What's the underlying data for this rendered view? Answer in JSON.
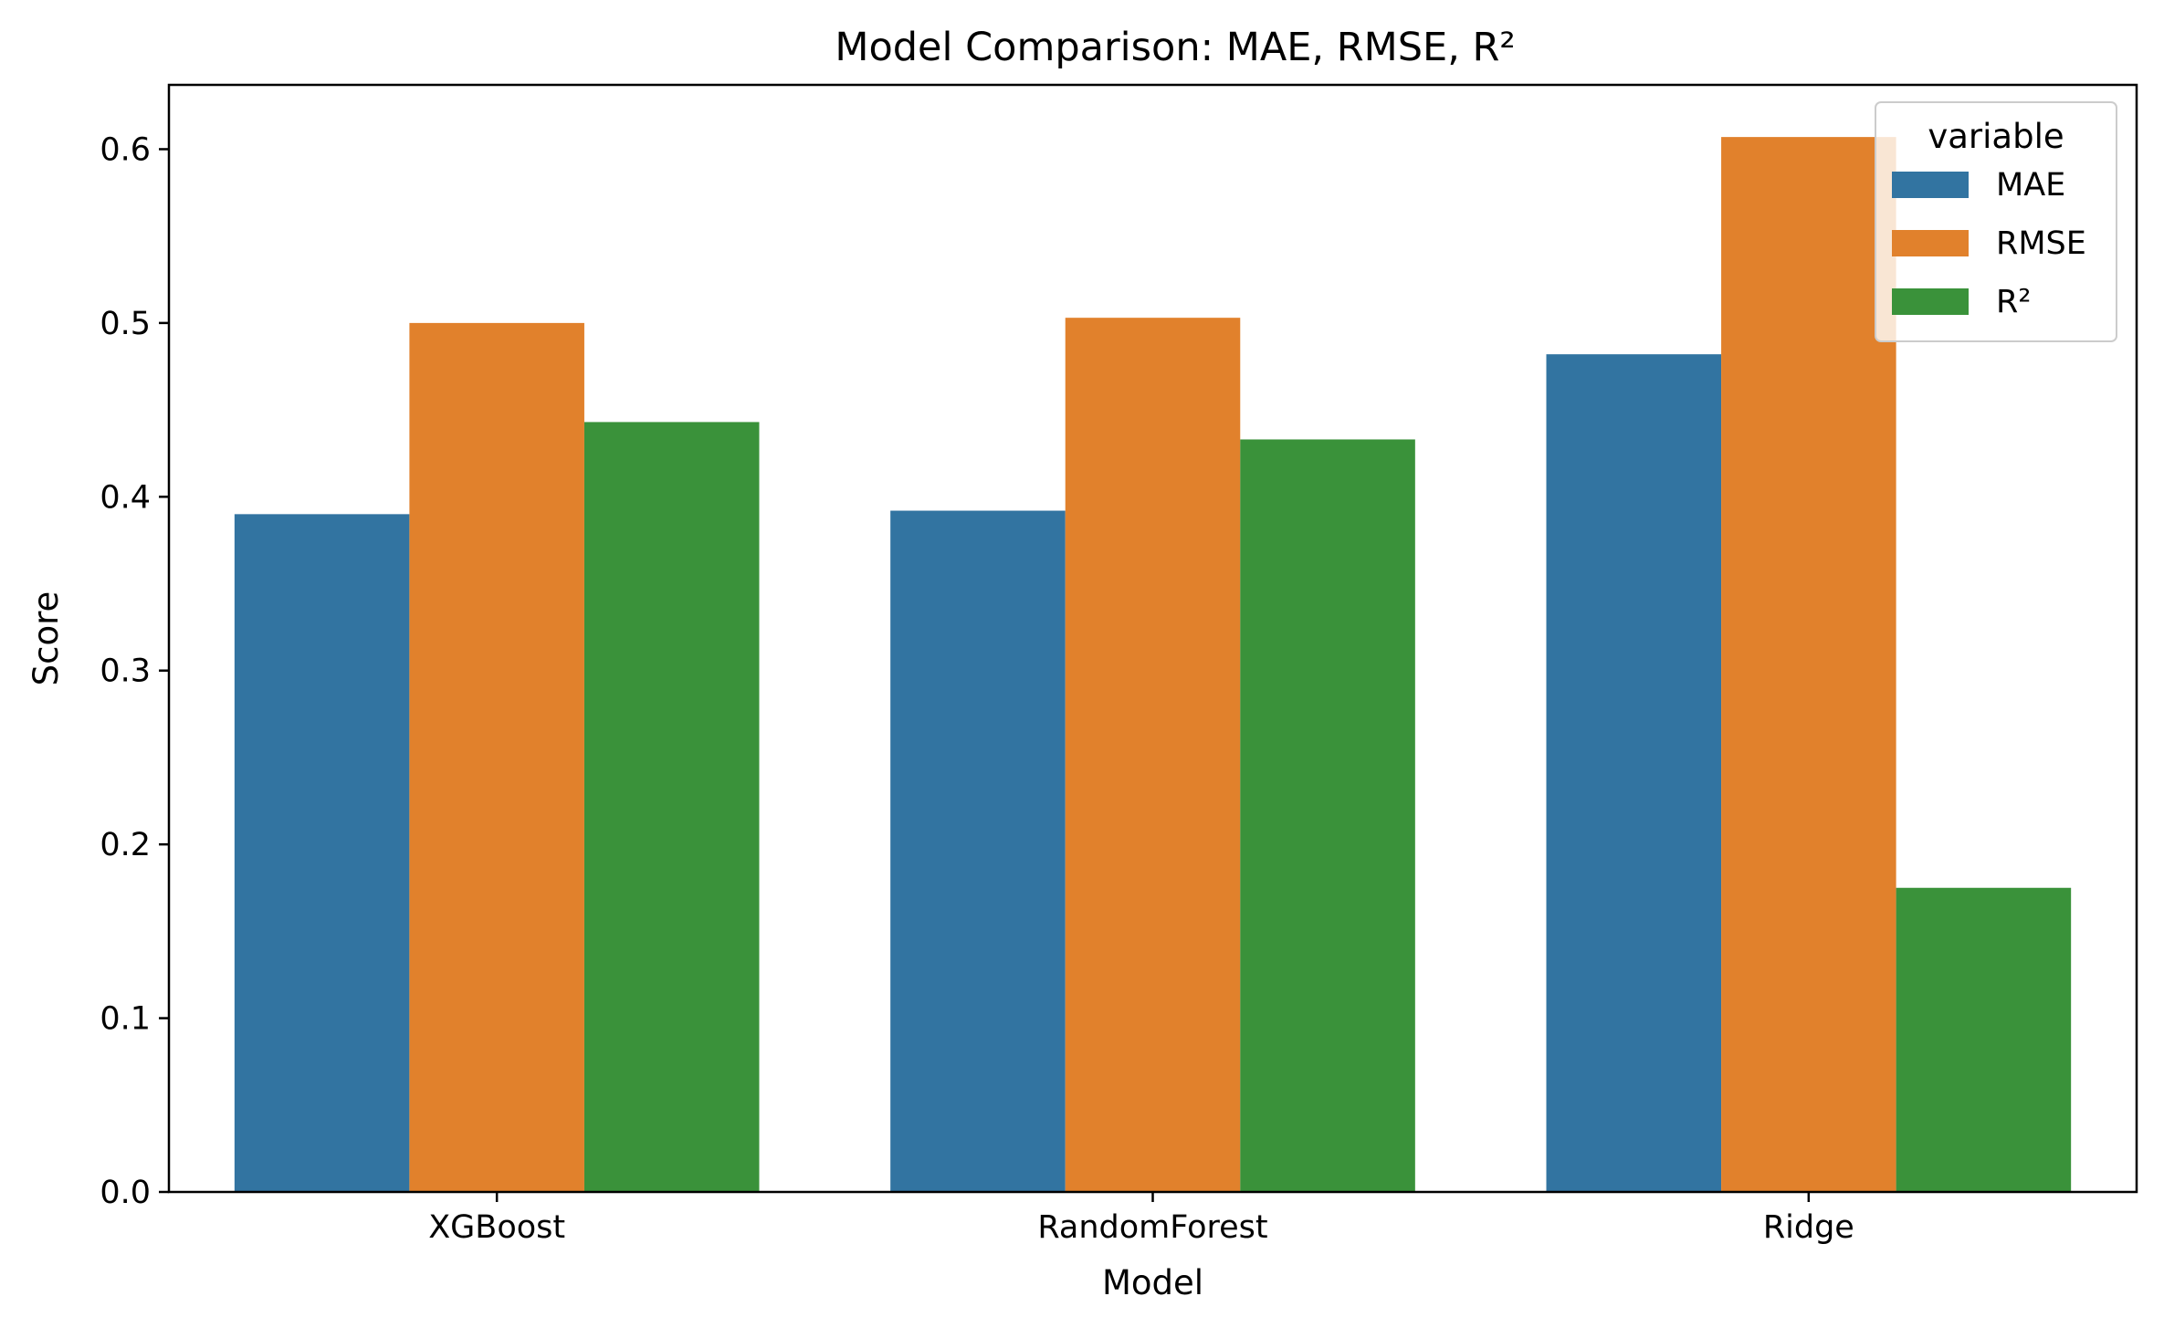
{
  "chart_data": {
    "type": "bar",
    "title": "Model Comparison: MAE, RMSE, R²",
    "xlabel": "Model",
    "ylabel": "Score",
    "categories": [
      "XGBoost",
      "RandomForest",
      "Ridge"
    ],
    "series": [
      {
        "name": "MAE",
        "color": "#3274a1",
        "values": [
          0.39,
          0.392,
          0.482
        ]
      },
      {
        "name": "RMSE",
        "color": "#e1812c",
        "values": [
          0.5,
          0.503,
          0.607
        ]
      },
      {
        "name": "R²",
        "color": "#3a923a",
        "values": [
          0.443,
          0.433,
          0.175
        ]
      }
    ],
    "ylim": [
      0,
      0.637
    ],
    "yticks": [
      0.0,
      0.1,
      0.2,
      0.3,
      0.4,
      0.5,
      0.6
    ],
    "ytick_labels": [
      "0.0",
      "0.1",
      "0.2",
      "0.3",
      "0.4",
      "0.5",
      "0.6"
    ],
    "grid": false,
    "legend": {
      "title": "variable",
      "placement": "top-right"
    }
  }
}
